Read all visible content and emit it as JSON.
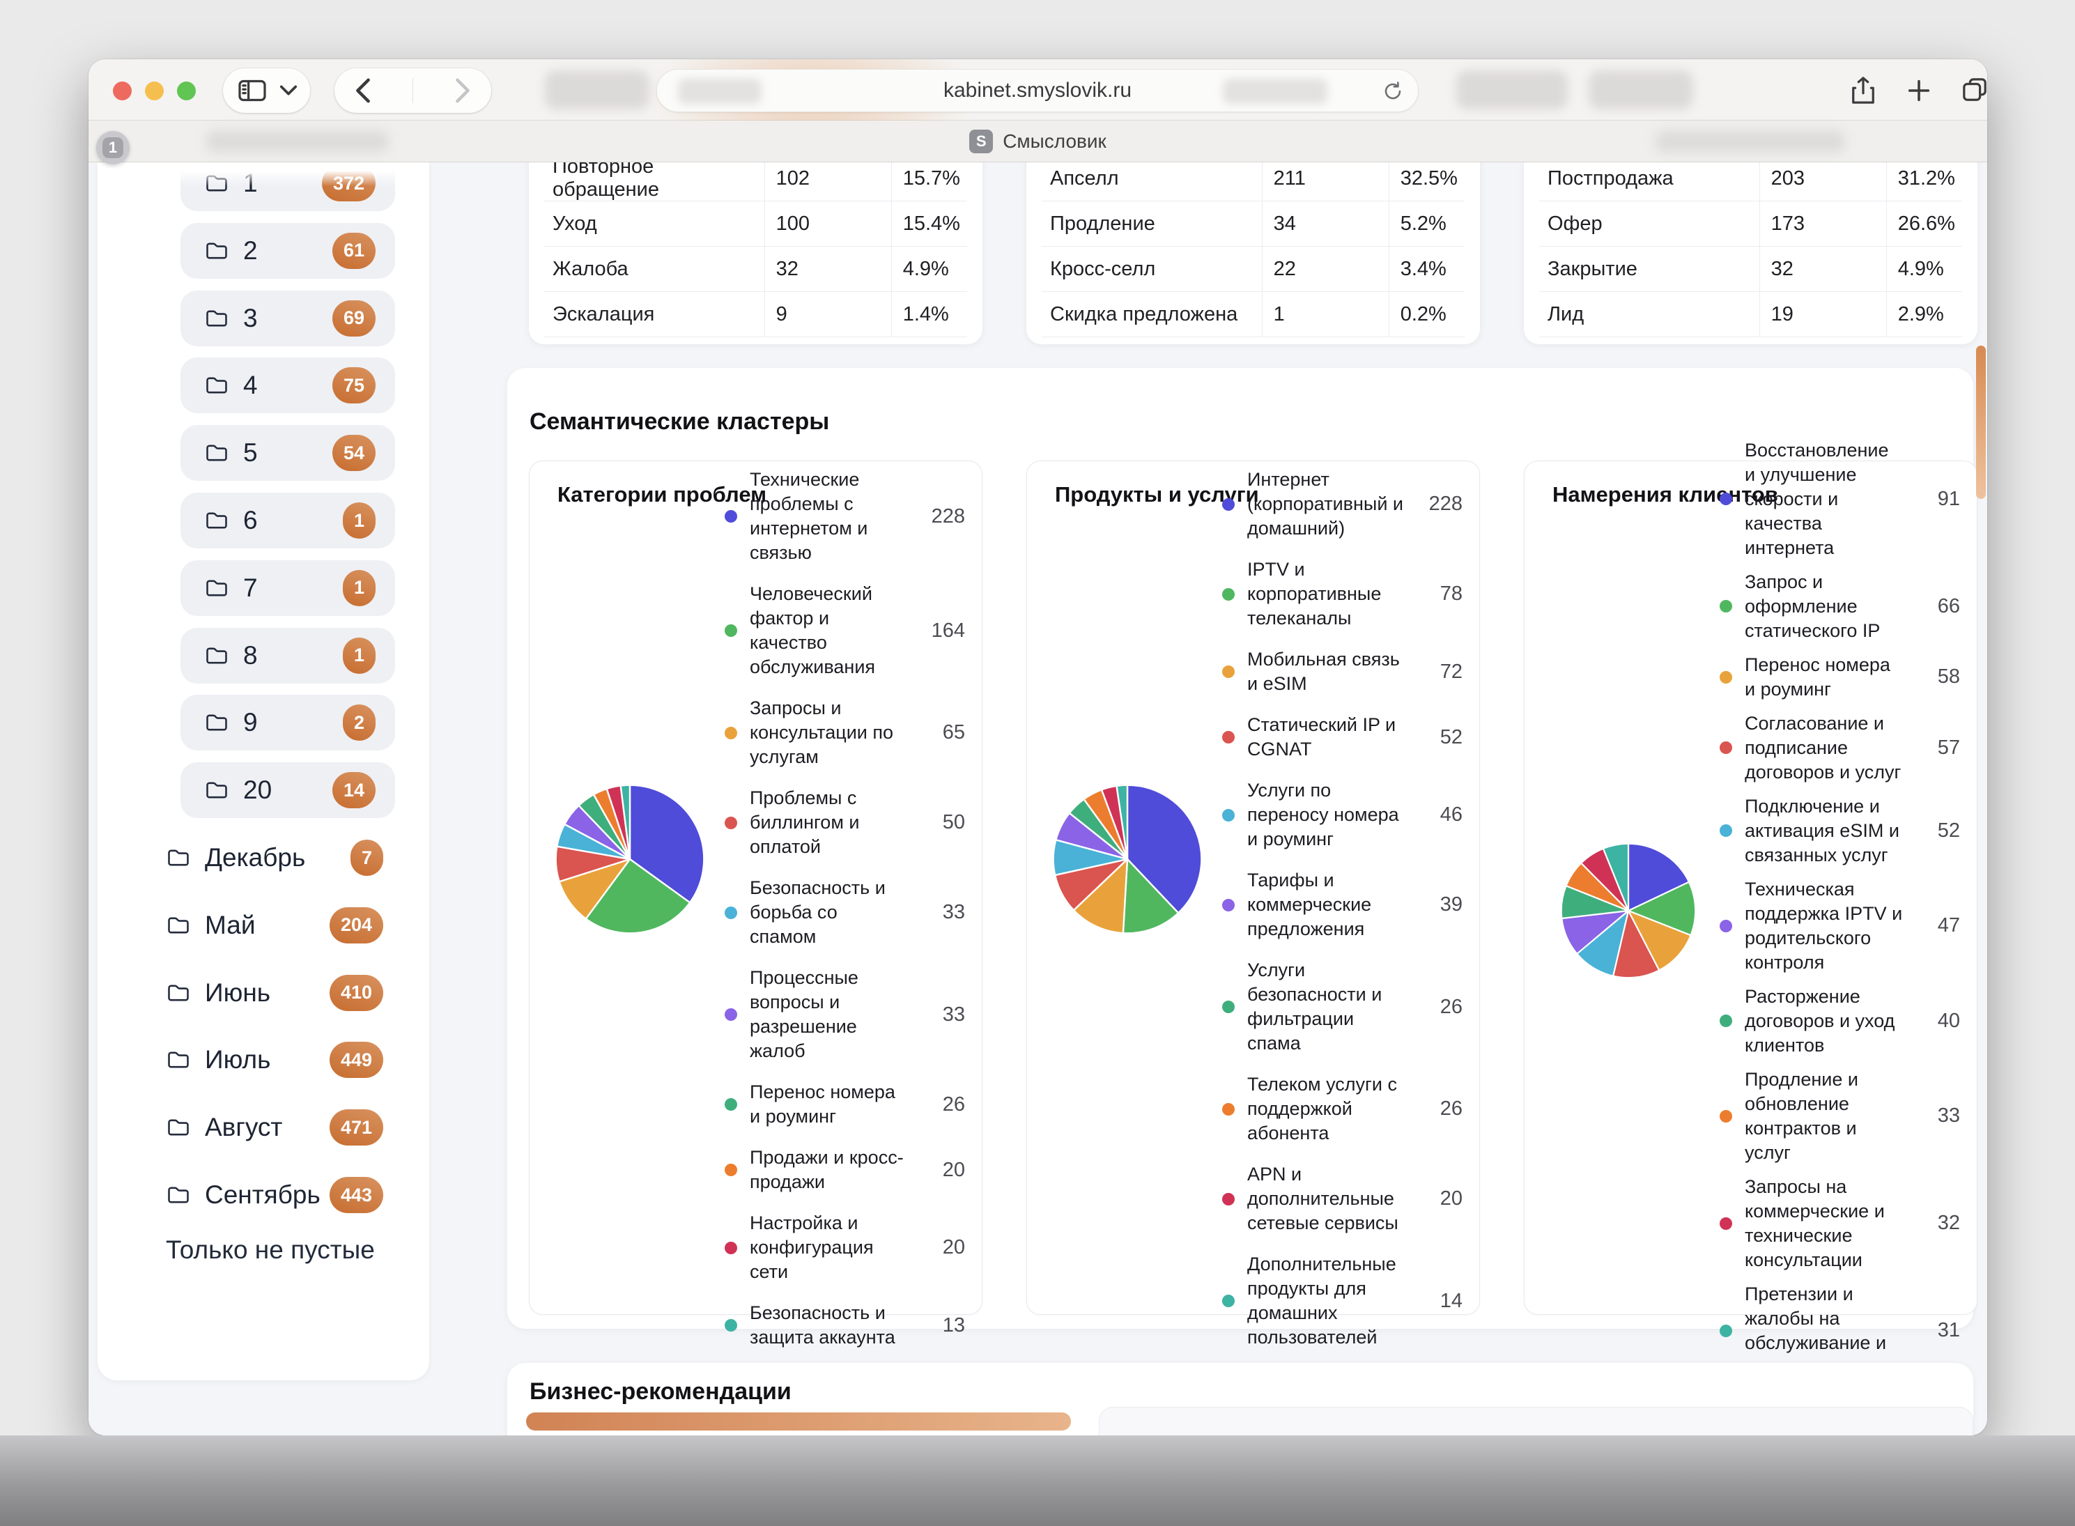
{
  "window": {
    "badge": "1"
  },
  "browser": {
    "url": "kabinet.smyslovik.ru",
    "tab": {
      "title": "Смысловик",
      "favicon_letter": "S"
    }
  },
  "sidebar": {
    "folders": [
      {
        "label": "1",
        "count": "372"
      },
      {
        "label": "2",
        "count": "61"
      },
      {
        "label": "3",
        "count": "69"
      },
      {
        "label": "4",
        "count": "75"
      },
      {
        "label": "5",
        "count": "54"
      },
      {
        "label": "6",
        "count": "1"
      },
      {
        "label": "7",
        "count": "1"
      },
      {
        "label": "8",
        "count": "1"
      },
      {
        "label": "9",
        "count": "2"
      },
      {
        "label": "20",
        "count": "14"
      }
    ],
    "months": [
      {
        "label": "Декабрь",
        "count": "7"
      },
      {
        "label": "Май",
        "count": "204"
      },
      {
        "label": "Июнь",
        "count": "410"
      },
      {
        "label": "Июль",
        "count": "449"
      },
      {
        "label": "Август",
        "count": "471"
      },
      {
        "label": "Сентябрь",
        "count": "443"
      }
    ],
    "footer_link": "Только не пустые"
  },
  "metrics_tables": [
    {
      "rows": [
        {
          "label": "Повторное обращение",
          "value": "102",
          "percent": "15.7%"
        },
        {
          "label": "Уход",
          "value": "100",
          "percent": "15.4%"
        },
        {
          "label": "Жалоба",
          "value": "32",
          "percent": "4.9%"
        },
        {
          "label": "Эскалация",
          "value": "9",
          "percent": "1.4%"
        }
      ]
    },
    {
      "rows": [
        {
          "label": "Апселл",
          "value": "211",
          "percent": "32.5%"
        },
        {
          "label": "Продление",
          "value": "34",
          "percent": "5.2%"
        },
        {
          "label": "Кросс-селл",
          "value": "22",
          "percent": "3.4%"
        },
        {
          "label": "Скидка предложена",
          "value": "1",
          "percent": "0.2%"
        }
      ]
    },
    {
      "rows": [
        {
          "label": "Постпродажа",
          "value": "203",
          "percent": "31.2%"
        },
        {
          "label": "Офер",
          "value": "173",
          "percent": "26.6%"
        },
        {
          "label": "Закрытие",
          "value": "32",
          "percent": "4.9%"
        },
        {
          "label": "Лид",
          "value": "19",
          "percent": "2.9%"
        }
      ]
    }
  ],
  "clusters_section": {
    "title": "Семантические кластеры"
  },
  "recommendations_section": {
    "title": "Бизнес-рекомендации"
  },
  "chart_data": [
    {
      "type": "pie",
      "title": "Категории проблем",
      "legend_position": "right",
      "labels": [
        "Технические проблемы с интернетом и связью",
        "Человеческий фактор и качество обслуживания",
        "Запросы и консультации по услугам",
        "Проблемы с биллингом и оплатой",
        "Безопасность и борьба со спамом",
        "Процессные вопросы и разрешение жалоб",
        "Перенос номера и роуминг",
        "Продажи и кросс-продажи",
        "Настройка и конфигурация сети",
        "Безопасность и защита аккаунта"
      ],
      "values": [
        228,
        164,
        65,
        50,
        33,
        33,
        26,
        20,
        20,
        13
      ]
    },
    {
      "type": "pie",
      "title": "Продукты и услуги",
      "legend_position": "right",
      "labels": [
        "Интернет (корпоративный и домашний)",
        "IPTV и корпоративные телеканалы",
        "Мобильная связь и eSIM",
        "Статический IP и CGNAT",
        "Услуги по переносу номера и роуминг",
        "Тарифы и коммерческие предложения",
        "Услуги безопасности и фильтрации спама",
        "Телеком услуги с поддержкой абонента",
        "APN и дополнительные сетевые сервисы",
        "Дополнительные продукты для домашних пользователей"
      ],
      "values": [
        228,
        78,
        72,
        52,
        46,
        39,
        26,
        26,
        20,
        14
      ]
    },
    {
      "type": "pie",
      "title": "Намерения клиентов",
      "legend_position": "right",
      "labels": [
        "Восстановление и улучшение скорости и качества интернета",
        "Запрос и оформление статического IP",
        "Перенос номера и роуминг",
        "Согласование и подписание договоров и услуг",
        "Подключение и активация eSIM и связанных услуг",
        "Техническая поддержка IPTV и родительского контроля",
        "Расторжение договоров и уход клиентов",
        "Продление и обновление контрактов и услуг",
        "Запросы на коммерческие и технические консультации",
        "Претензии и жалобы на обслуживание и качество услуг"
      ],
      "values": [
        91,
        66,
        58,
        57,
        52,
        47,
        40,
        33,
        32,
        31
      ]
    }
  ],
  "colors": {
    "palette": [
      "#4f4cd9",
      "#50b75f",
      "#e9a23b",
      "#da5450",
      "#49b2d6",
      "#8a63e6",
      "#3fae7d",
      "#ed7d2e",
      "#d03256",
      "#3db3a4"
    ],
    "badge_orange": "#c76d30",
    "scrollbar_orange": "#d78a52"
  }
}
